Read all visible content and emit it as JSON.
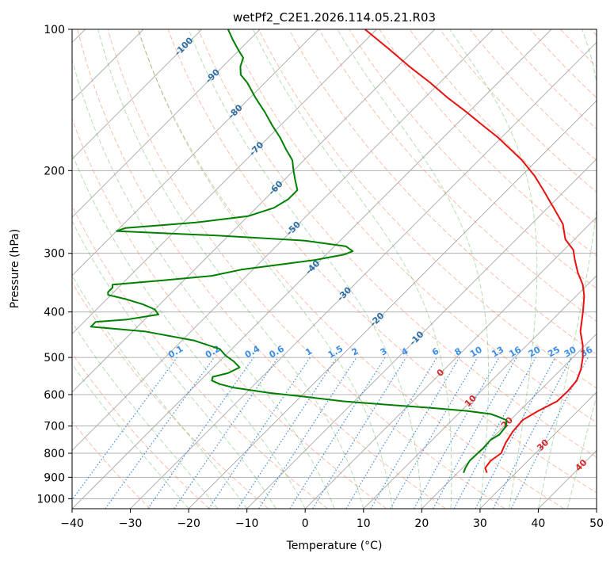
{
  "chart_data": {
    "type": "line",
    "title": "wetPf2_C2E1.2026.114.05.21.R03",
    "xlabel": "Temperature (°C)",
    "ylabel": "Pressure (hPa)",
    "xlim": [
      -40,
      50
    ],
    "ylim": [
      1050,
      100
    ],
    "y_scale": "log",
    "skew": "isotherms slanted 45°",
    "x_ticks": [
      "−40",
      "−30",
      "−20",
      "−10",
      "0",
      "10",
      "20",
      "30",
      "40",
      "50"
    ],
    "y_ticks": [
      "100",
      "200",
      "300",
      "400",
      "500",
      "600",
      "700",
      "800",
      "900",
      "1000"
    ],
    "grid": true,
    "legend": "none",
    "series": [
      {
        "color": "#e8110f",
        "points": [
          [
            880,
            25.0
          ],
          [
            860,
            23.9
          ],
          [
            830,
            23.6
          ],
          [
            800,
            24.1
          ],
          [
            760,
            23.1
          ],
          [
            720,
            22.4
          ],
          [
            680,
            22.1
          ],
          [
            650,
            23.2
          ],
          [
            620,
            24.8
          ],
          [
            590,
            24.9
          ],
          [
            560,
            24.6
          ],
          [
            530,
            23.4
          ],
          [
            500,
            21.7
          ],
          [
            470,
            19.5
          ],
          [
            440,
            16.8
          ],
          [
            400,
            13.9
          ],
          [
            370,
            11.4
          ],
          [
            350,
            9.2
          ],
          [
            330,
            6.3
          ],
          [
            310,
            3.6
          ],
          [
            295,
            1.6
          ],
          [
            280,
            -1.6
          ],
          [
            260,
            -4.6
          ],
          [
            240,
            -9.0
          ],
          [
            220,
            -13.8
          ],
          [
            205,
            -17.8
          ],
          [
            190,
            -22.6
          ],
          [
            180,
            -26.5
          ],
          [
            170,
            -30.6
          ],
          [
            160,
            -35.4
          ],
          [
            150,
            -40.4
          ],
          [
            140,
            -46.0
          ],
          [
            130,
            -51.6
          ],
          [
            120,
            -58.0
          ],
          [
            110,
            -64.6
          ],
          [
            100,
            -72.0
          ]
        ]
      },
      {
        "color": "#008000",
        "points": [
          [
            880,
            21.0
          ],
          [
            860,
            20.5
          ],
          [
            830,
            20.0
          ],
          [
            800,
            20.1
          ],
          [
            780,
            20.2
          ],
          [
            750,
            20.0
          ],
          [
            730,
            20.6
          ],
          [
            700,
            20.3
          ],
          [
            680,
            19.3
          ],
          [
            670,
            17.6
          ],
          [
            660,
            15.6
          ],
          [
            650,
            11.0
          ],
          [
            640,
            4.0
          ],
          [
            630,
            -4.0
          ],
          [
            620,
            -12.0
          ],
          [
            605,
            -20.0
          ],
          [
            595,
            -26.0
          ],
          [
            580,
            -33.0
          ],
          [
            570,
            -36.0
          ],
          [
            560,
            -38.0
          ],
          [
            550,
            -38.5
          ],
          [
            540,
            -36.5
          ],
          [
            525,
            -35.5
          ],
          [
            510,
            -37.5
          ],
          [
            495,
            -40.0
          ],
          [
            480,
            -42.0
          ],
          [
            460,
            -48.0
          ],
          [
            440,
            -58.0
          ],
          [
            430,
            -68.0
          ],
          [
            420,
            -68.0
          ],
          [
            415,
            -63.0
          ],
          [
            405,
            -58.5
          ],
          [
            395,
            -60.0
          ],
          [
            385,
            -63.0
          ],
          [
            375,
            -67.0
          ],
          [
            368,
            -70.5
          ],
          [
            363,
            -71.0
          ],
          [
            355,
            -71.0
          ],
          [
            350,
            -71.5
          ],
          [
            343,
            -64.0
          ],
          [
            335,
            -56.0
          ],
          [
            325,
            -52.0
          ],
          [
            318,
            -47.0
          ],
          [
            310,
            -41.0
          ],
          [
            302,
            -37.0
          ],
          [
            297,
            -36.0
          ],
          [
            290,
            -38.0
          ],
          [
            282,
            -46.0
          ],
          [
            275,
            -62.0
          ],
          [
            269,
            -80.0
          ],
          [
            265,
            -79.0
          ],
          [
            258,
            -68.0
          ],
          [
            250,
            -60.0
          ],
          [
            240,
            -57.0
          ],
          [
            230,
            -56.0
          ],
          [
            220,
            -56.0
          ],
          [
            210,
            -58.0
          ],
          [
            200,
            -60.0
          ],
          [
            190,
            -62.0
          ],
          [
            180,
            -65.0
          ],
          [
            170,
            -68.0
          ],
          [
            160,
            -71.5
          ],
          [
            150,
            -75.0
          ],
          [
            140,
            -79.0
          ],
          [
            130,
            -83.0
          ],
          [
            125,
            -85.5
          ],
          [
            120,
            -87.0
          ],
          [
            115,
            -88.0
          ],
          [
            110,
            -90.5
          ],
          [
            105,
            -93.0
          ],
          [
            100,
            -95.5
          ]
        ]
      }
    ],
    "dry_adiabat_labels": [
      "-100",
      "-90",
      "-80",
      "-70",
      "-60",
      "-50",
      "-40",
      "-30",
      "-20",
      "-10"
    ],
    "moist_adiabat_labels": [
      "0",
      "10",
      "20",
      "30",
      "40"
    ],
    "mixing_ratio_labels": [
      "0.1",
      "0.2",
      "0.4",
      "0.6",
      "1",
      "1.5",
      "2",
      "3",
      "4",
      "6",
      "8",
      "10",
      "13",
      "16",
      "20",
      "25",
      "30",
      "36"
    ]
  }
}
